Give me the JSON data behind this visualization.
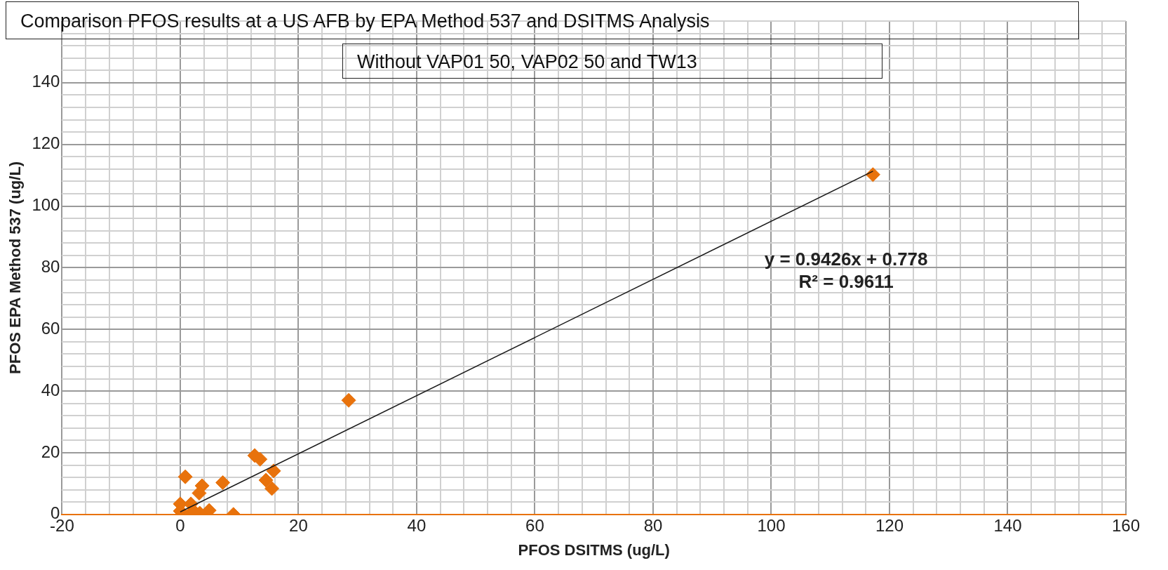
{
  "chart_data": {
    "type": "scatter",
    "title": "Comparison PFOS results at a US AFB by EPA Method 537 and DSITMS Analysis",
    "subtitle": "Without VAP01 50, VAP02 50 and TW13",
    "xlabel": "PFOS DSITMS (ug/L)",
    "ylabel": "PFOS EPA Method 537 (ug/L)",
    "series": [
      {
        "color": "#e8720c",
        "marker": "diamond",
        "x": [
          0.85,
          12.6,
          13.5,
          15.8,
          14.5,
          15.5,
          7.2,
          3.7,
          3.2,
          0,
          1.8,
          4.9,
          3.3,
          9,
          1.6,
          2.4,
          0,
          28.5,
          117.2
        ],
        "values": [
          12.2,
          19.1,
          17.9,
          14.1,
          11.1,
          8.4,
          10.3,
          9.3,
          6.9,
          3.4,
          3.4,
          1.3,
          0.4,
          0,
          0,
          0.8,
          1.1,
          37,
          110.2
        ]
      },
      {
        "type": "line",
        "color": "#1a1a1a",
        "marker": "none",
        "x": [
          0,
          117.2
        ],
        "values": [
          0.8,
          111.3
        ]
      }
    ],
    "annotations": [
      "y = 0.9426x + 0.778",
      "R² = 0.9611"
    ],
    "xlim": [
      -20,
      160
    ],
    "ylim": [
      0,
      160
    ],
    "xticks": [
      -20,
      {
        "value": -16,
        "label": null
      },
      {
        "value": -12,
        "label": null
      },
      {
        "value": -8,
        "label": null
      },
      {
        "value": -4,
        "label": null
      },
      0,
      {
        "value": 4,
        "label": null
      },
      {
        "value": 8,
        "label": null
      },
      {
        "value": 12,
        "label": null
      },
      {
        "value": 16,
        "label": null
      },
      20,
      {
        "value": 24,
        "label": null
      },
      {
        "value": 28,
        "label": null
      },
      {
        "value": 32,
        "label": null
      },
      {
        "value": 36,
        "label": null
      },
      40,
      {
        "value": 44,
        "label": null
      },
      {
        "value": 48,
        "label": null
      },
      {
        "value": 52,
        "label": null
      },
      {
        "value": 56,
        "label": null
      },
      60,
      {
        "value": 64,
        "label": null
      },
      {
        "value": 68,
        "label": null
      },
      {
        "value": 72,
        "label": null
      },
      {
        "value": 76,
        "label": null
      },
      80,
      {
        "value": 84,
        "label": null
      },
      {
        "value": 88,
        "label": null
      },
      {
        "value": 92,
        "label": null
      },
      {
        "value": 96,
        "label": null
      },
      100,
      {
        "value": 104,
        "label": null
      },
      {
        "value": 108,
        "label": null
      },
      {
        "value": 112,
        "label": null
      },
      {
        "value": 116,
        "label": null
      },
      120,
      {
        "value": 124,
        "label": null
      },
      {
        "value": 128,
        "label": null
      },
      {
        "value": 132,
        "label": null
      },
      {
        "value": 136,
        "label": null
      },
      140,
      {
        "value": 144,
        "label": null
      },
      {
        "value": 148,
        "label": null
      },
      {
        "value": 152,
        "label": null
      },
      {
        "value": 156,
        "label": null
      },
      160
    ],
    "yticks": [
      0,
      {
        "value": 4,
        "label": null
      },
      {
        "value": 8,
        "label": null
      },
      {
        "value": 12,
        "label": null
      },
      {
        "value": 16,
        "label": null
      },
      20,
      {
        "value": 24,
        "label": null
      },
      {
        "value": 28,
        "label": null
      },
      {
        "value": 32,
        "label": null
      },
      {
        "value": 36,
        "label": null
      },
      40,
      {
        "value": 44,
        "label": null
      },
      {
        "value": 48,
        "label": null
      },
      {
        "value": 52,
        "label": null
      },
      {
        "value": 56,
        "label": null
      },
      60,
      {
        "value": 64,
        "label": null
      },
      {
        "value": 68,
        "label": null
      },
      {
        "value": 72,
        "label": null
      },
      {
        "value": 76,
        "label": null
      },
      80,
      {
        "value": 84,
        "label": null
      },
      {
        "value": 88,
        "label": null
      },
      {
        "value": 92,
        "label": null
      },
      {
        "value": 96,
        "label": null
      },
      100,
      {
        "value": 104,
        "label": null
      },
      {
        "value": 108,
        "label": null
      },
      {
        "value": 112,
        "label": null
      },
      {
        "value": 116,
        "label": null
      },
      120,
      {
        "value": 124,
        "label": null
      },
      {
        "value": 128,
        "label": null
      },
      {
        "value": 132,
        "label": null
      },
      {
        "value": 136,
        "label": null
      },
      140,
      {
        "value": 144,
        "label": null
      },
      {
        "value": 148,
        "label": null
      },
      {
        "value": 152,
        "label": null
      },
      {
        "value": 156,
        "label": null
      },
      {
        "value": 160,
        "label": null
      }
    ],
    "grid": true,
    "legend": false
  }
}
